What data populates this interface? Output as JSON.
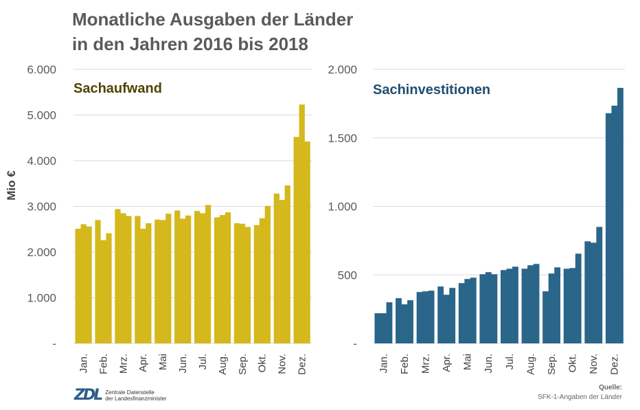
{
  "title": {
    "line1": "Monatliche Ausgaben der Länder",
    "line2": "in den Jahren 2016 bis 2018"
  },
  "colors": {
    "left_bars": "#d4b81c",
    "left_label": "#4f4300",
    "right_bars": "#2a658a",
    "right_label": "#1f4e6e",
    "grid": "#d9d9d9",
    "axis_text": "#595959"
  },
  "chart_data": [
    {
      "type": "bar",
      "title": "Sachaufwand",
      "ylabel": "Mio €",
      "ylim": [
        0,
        6000
      ],
      "yticks": [
        0,
        1000,
        2000,
        3000,
        4000,
        5000,
        6000
      ],
      "ytick_labels": [
        "-",
        "1.000",
        "2.000",
        "3.000",
        "4.000",
        "5.000",
        "6.000"
      ],
      "categories": [
        "Jan.",
        "Feb.",
        "Mrz.",
        "Apr.",
        "Mai",
        "Jun.",
        "Jul.",
        "Aug.",
        "Sep.",
        "Okt.",
        "Nov.",
        "Dez."
      ],
      "series": [
        {
          "values": [
            2510,
            2700,
            2940,
            2790,
            2710,
            2910,
            2900,
            2760,
            2630,
            2590,
            3280,
            4520
          ]
        },
        {
          "values": [
            2610,
            2260,
            2850,
            2510,
            2700,
            2730,
            2850,
            2810,
            2620,
            2740,
            3140,
            5230
          ]
        },
        {
          "values": [
            2560,
            2410,
            2790,
            2630,
            2840,
            2800,
            3030,
            2870,
            2550,
            3010,
            3460,
            4420
          ]
        }
      ],
      "grid": true
    },
    {
      "type": "bar",
      "title": "Sachinvestitionen",
      "ylabel": "",
      "ylim": [
        0,
        2000
      ],
      "yticks": [
        0,
        500,
        1000,
        1500,
        2000
      ],
      "ytick_labels": [
        "-",
        "500",
        "1.000",
        "1.500",
        "2.000"
      ],
      "categories": [
        "Jan.",
        "Feb.",
        "Mrz.",
        "Apr.",
        "Mai",
        "Jun.",
        "Jul.",
        "Aug.",
        "Sep.",
        "Okt.",
        "Nov.",
        "Dez."
      ],
      "series": [
        {
          "values": [
            220,
            330,
            375,
            415,
            440,
            505,
            535,
            545,
            380,
            545,
            745,
            1680
          ]
        },
        {
          "values": [
            220,
            285,
            380,
            355,
            470,
            520,
            545,
            570,
            510,
            550,
            735,
            1735
          ]
        },
        {
          "values": [
            300,
            315,
            385,
            405,
            480,
            505,
            560,
            580,
            555,
            655,
            850,
            1865
          ]
        }
      ],
      "grid": true
    }
  ],
  "footer": {
    "logo_mark": "ZDL",
    "logo_line1": "Zentrale Datenstelle",
    "logo_line2": "der Landesfinanzminister",
    "source_label": "Quelle:",
    "source_text": "SFK-1-Angaben der Länder"
  }
}
